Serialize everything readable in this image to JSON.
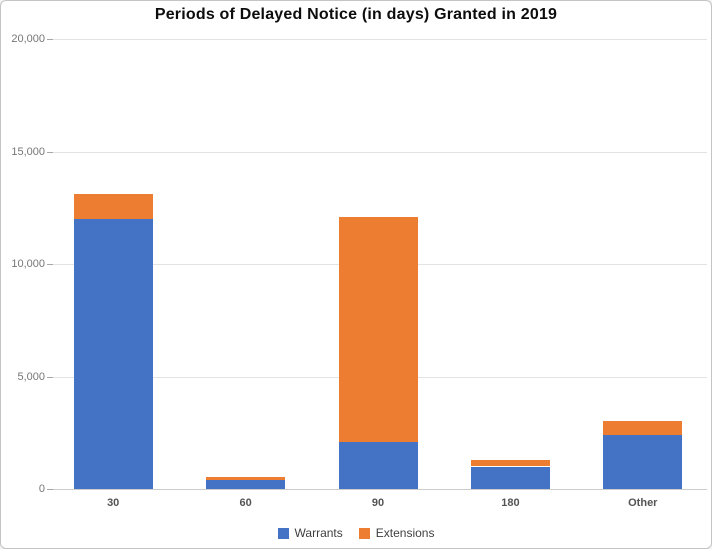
{
  "chart_data": {
    "type": "bar",
    "stacked": true,
    "title": "Periods of Delayed Notice (in days) Granted in 2019",
    "categories": [
      "30",
      "60",
      "90",
      "180",
      "Other"
    ],
    "series": [
      {
        "name": "Warrants",
        "color": "#4472C4",
        "values": [
          12000,
          400,
          2100,
          1000,
          2400
        ]
      },
      {
        "name": "Extensions",
        "color": "#ED7D31",
        "values": [
          1100,
          150,
          10000,
          270,
          620
        ]
      }
    ],
    "totals": [
      13100,
      550,
      12100,
      1270,
      3020
    ],
    "xlabel": "",
    "ylabel": "",
    "ylim": [
      0,
      20000
    ],
    "yticks": [
      0,
      5000,
      10000,
      15000,
      20000
    ],
    "ytick_labels": [
      "0",
      "5,000",
      "10,000",
      "15,000",
      "20,000"
    ],
    "grid": true,
    "legend_position": "bottom"
  },
  "colors": {
    "warrants_blue": "#4472C4",
    "extensions_orange": "#ED7D31",
    "gridline": "#e3e3e3",
    "axis_line": "#cccccc",
    "ytick_text": "#767676",
    "xtick_text": "#545454",
    "legend_text": "#3f3f3f",
    "frame_border": "#c4c4c4",
    "background": "#ffffff"
  }
}
